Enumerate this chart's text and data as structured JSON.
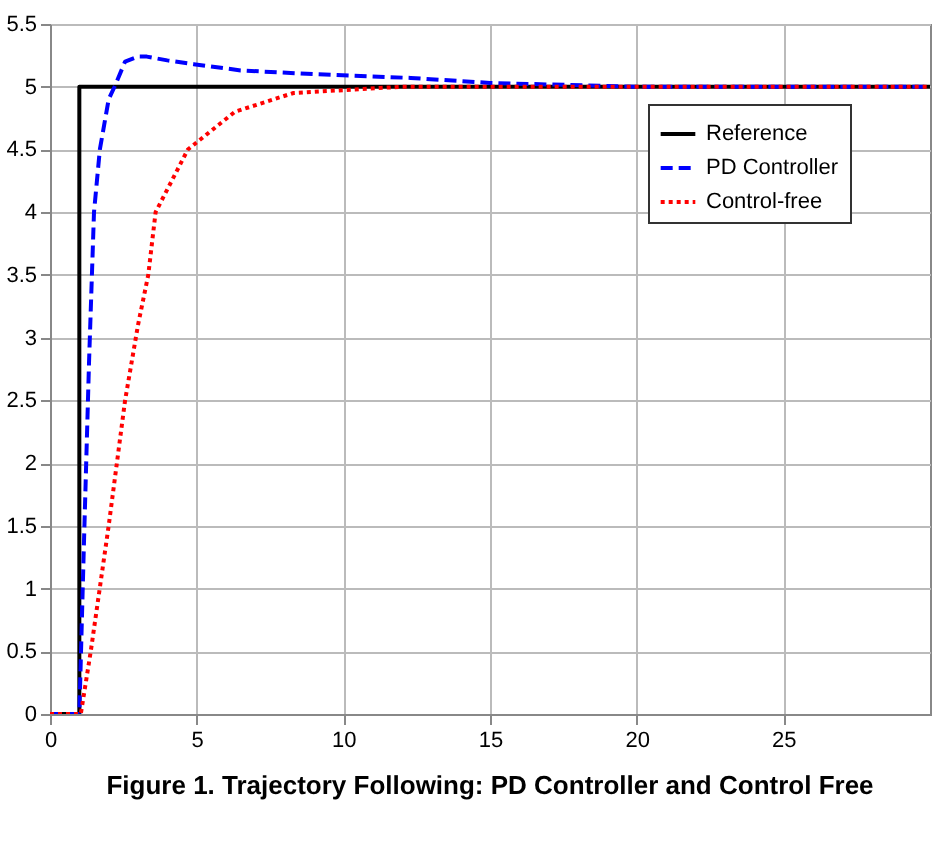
{
  "chart_data": {
    "type": "line",
    "title": "Figure 1. Trajectory Following: PD Controller and Control Free",
    "xlim": [
      0,
      30
    ],
    "xticks": [
      0,
      5,
      10,
      15,
      20,
      25
    ],
    "ylim": [
      0,
      5.5
    ],
    "yticks": [
      0,
      0.5,
      1,
      1.5,
      2,
      2.5,
      3,
      3.5,
      4,
      4.5,
      5,
      5.5
    ],
    "grid": true,
    "legend": "top right",
    "marker": "none",
    "series": [
      {
        "name": "Reference",
        "color": "#000000",
        "line_style": "solid",
        "x": [
          0,
          1,
          1,
          30
        ],
        "values": [
          0,
          0,
          5,
          5
        ]
      },
      {
        "name": "PD Controller",
        "color": "#0000ff",
        "line_style": "dashed",
        "x": [
          0,
          1,
          1.15,
          1.33,
          1.5,
          1.7,
          2.0,
          2.2,
          2.56,
          3.0,
          3.3,
          4.0,
          4.9,
          6.5,
          9.0,
          12.3,
          15,
          20,
          30
        ],
        "values": [
          0,
          0,
          1.3,
          2.8,
          4.0,
          4.5,
          4.9,
          5.0,
          5.2,
          5.24,
          5.24,
          5.21,
          5.18,
          5.13,
          5.1,
          5.07,
          5.03,
          5.0,
          5.0
        ]
      },
      {
        "name": "Control-free",
        "color": "#ff0000",
        "line_style": "dotted",
        "x": [
          0,
          1.05,
          1.39,
          2.0,
          2.56,
          3.0,
          3.35,
          3.6,
          4.7,
          6.3,
          8.3,
          12,
          20,
          30
        ],
        "values": [
          0,
          0,
          0.5,
          1.5,
          2.5,
          3.1,
          3.5,
          4.0,
          4.5,
          4.8,
          4.95,
          5.0,
          5.0,
          5.0
        ]
      }
    ]
  }
}
